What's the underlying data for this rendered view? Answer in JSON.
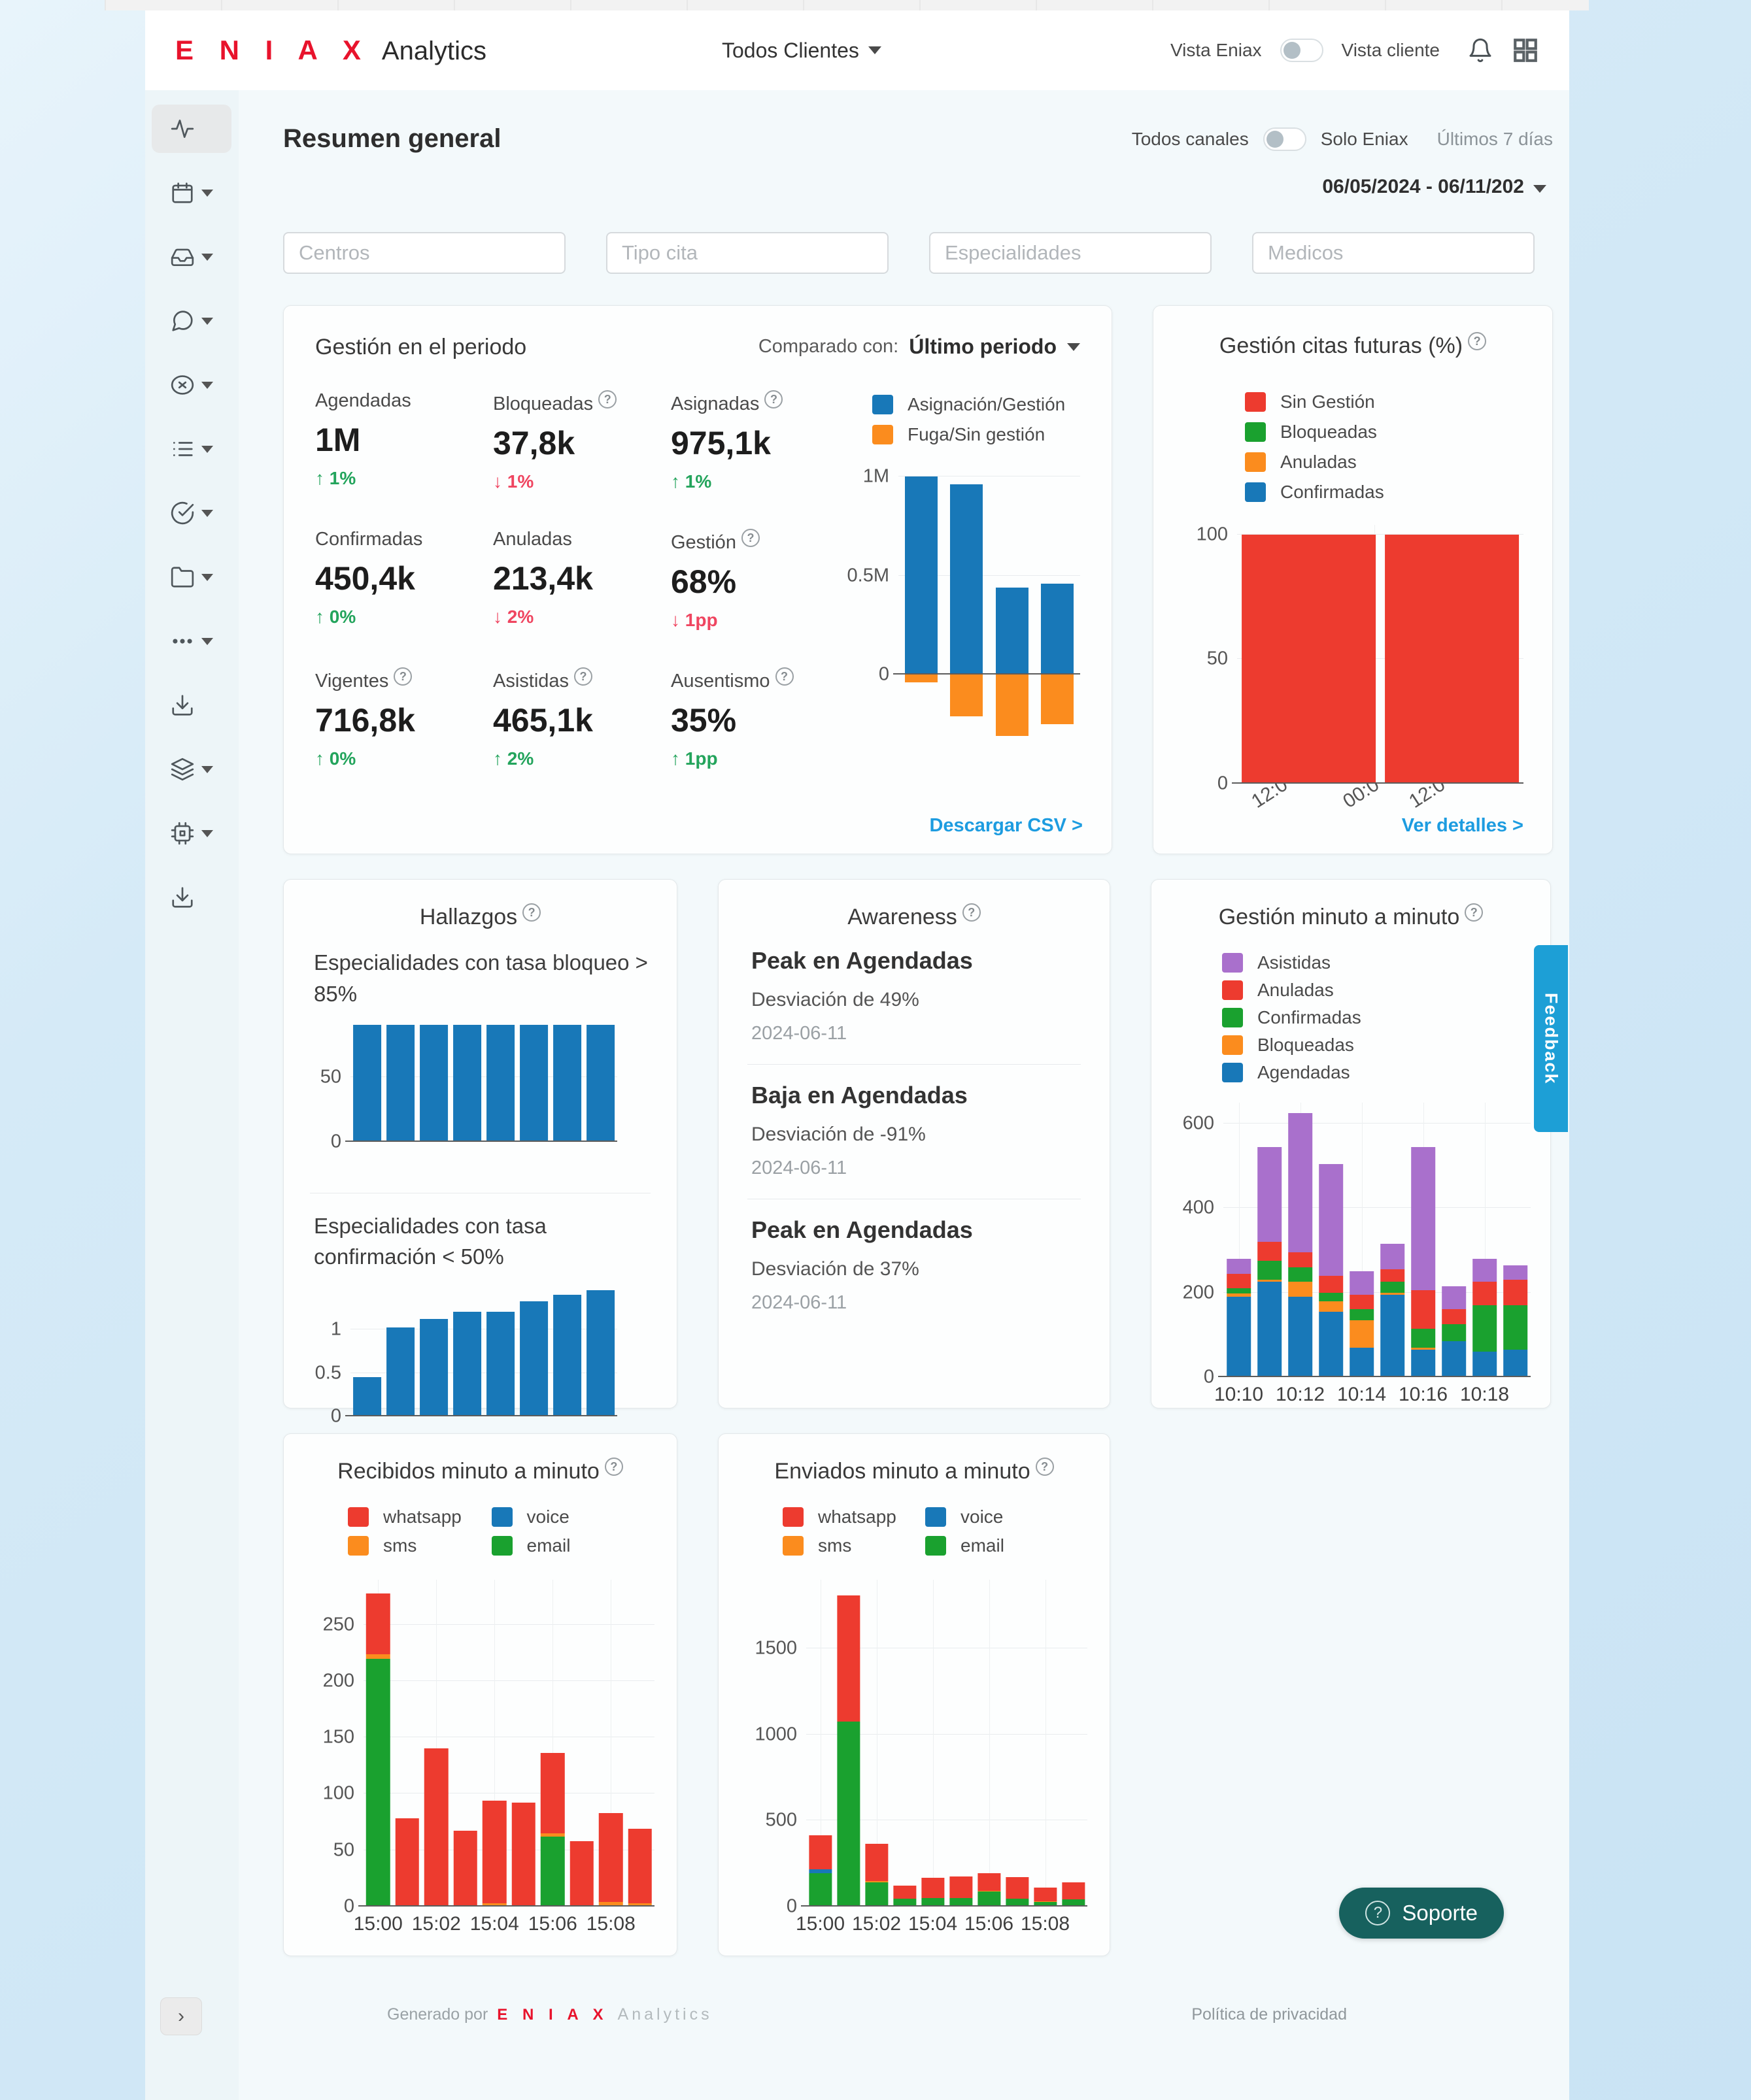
{
  "colors": {
    "brand_red": "#e8132c",
    "link_blue": "#1d9ce0",
    "bar_blue": "#1878b8",
    "bar_orange": "#fb8c1e",
    "bar_red": "#ed3b2f",
    "bar_green": "#1aa12f",
    "bar_purple": "#a970cc",
    "delta_green": "#23a45c",
    "delta_red": "#ef4560",
    "feedback_blue": "#1d9fd6",
    "soporte_teal": "#17615e"
  },
  "header": {
    "brand": "E N I A X",
    "brand_suffix": "Analytics",
    "client_selector": "Todos Clientes",
    "vista_eniax": "Vista Eniax",
    "vista_cliente": "Vista cliente"
  },
  "page": {
    "title": "Resumen general",
    "channels_left": "Todos canales",
    "channels_right": "Solo Eniax",
    "period": "Últimos 7 días",
    "date_range": "06/05/2024 - 06/11/202"
  },
  "filters": {
    "centros": "Centros",
    "tipo_cita": "Tipo cita",
    "especialidades": "Especialidades",
    "medicos": "Medicos"
  },
  "cards": {
    "gestion_periodo": {
      "title": "Gestión en el periodo",
      "compare_label": "Comparado con:",
      "compare_value": "Último periodo",
      "csv_link": "Descargar CSV >",
      "metrics": [
        {
          "label": "Agendadas",
          "info": false,
          "value": "1M",
          "delta": "1%",
          "dir": "up",
          "tone": "green"
        },
        {
          "label": "Bloqueadas",
          "info": true,
          "value": "37,8k",
          "delta": "1%",
          "dir": "down",
          "tone": "red"
        },
        {
          "label": "Asignadas",
          "info": true,
          "value": "975,1k",
          "delta": "1%",
          "dir": "up",
          "tone": "green"
        },
        {
          "label": "Confirmadas",
          "info": false,
          "value": "450,4k",
          "delta": "0%",
          "dir": "up",
          "tone": "green"
        },
        {
          "label": "Anuladas",
          "info": false,
          "value": "213,4k",
          "delta": "2%",
          "dir": "down",
          "tone": "red"
        },
        {
          "label": "Gestión",
          "info": true,
          "value": "68%",
          "delta": "1pp",
          "dir": "down",
          "tone": "red"
        },
        {
          "label": "Vigentes",
          "info": true,
          "value": "716,8k",
          "delta": "0%",
          "dir": "up",
          "tone": "green"
        },
        {
          "label": "Asistidas",
          "info": true,
          "value": "465,1k",
          "delta": "2%",
          "dir": "up",
          "tone": "green"
        },
        {
          "label": "Ausentismo",
          "info": true,
          "value": "35%",
          "delta": "1pp",
          "dir": "up",
          "tone": "green"
        }
      ],
      "legend": [
        {
          "label": "Asignación/Gestión",
          "color": "#1878b8"
        },
        {
          "label": "Fuga/Sin gestión",
          "color": "#fb8c1e"
        }
      ],
      "chart_data": {
        "type": "bar",
        "stacked": true,
        "show_xlabels": false,
        "categories": [
          "",
          "",
          "",
          ""
        ],
        "series": [
          {
            "name": "Asignación/Gestión",
            "color": "#1878b8",
            "values": [
              1.0,
              0.96,
              0.44,
              0.46
            ]
          },
          {
            "name": "Fuga/Sin gestión",
            "color": "#fb8c1e",
            "values": [
              -0.04,
              -0.21,
              -0.31,
              -0.25
            ]
          }
        ],
        "ylabel": "citas (millones)",
        "ylim": [
          -0.36,
          1.06
        ],
        "yticks": [
          [
            1,
            "1M"
          ],
          [
            0.5,
            "0.5M"
          ],
          [
            0,
            "0"
          ]
        ],
        "bar_width": "72%"
      }
    },
    "citas_futuras": {
      "title": "Gestión citas futuras (%)",
      "link": "Ver detalles >",
      "legend": [
        {
          "label": "Sin Gestión",
          "color": "#ed3b2f"
        },
        {
          "label": "Bloqueadas",
          "color": "#1aa12f"
        },
        {
          "label": "Anuladas",
          "color": "#fb8c1e"
        },
        {
          "label": "Confirmadas",
          "color": "#1878b8"
        }
      ],
      "chart_data": {
        "type": "bar",
        "stacked": true,
        "categories": [
          "",
          ""
        ],
        "series": [
          {
            "name": "Sin Gestión",
            "color": "#ed3b2f",
            "values": [
              100,
              100
            ]
          },
          {
            "name": "Bloqueadas",
            "color": "#1aa12f",
            "values": [
              0,
              0
            ]
          },
          {
            "name": "Anuladas",
            "color": "#fb8c1e",
            "values": [
              0,
              0
            ]
          },
          {
            "name": "Confirmadas",
            "color": "#1878b8",
            "values": [
              0,
              0
            ]
          }
        ],
        "ylim": [
          0,
          104
        ],
        "yticks": [
          [
            100,
            "100"
          ],
          [
            50,
            "50"
          ],
          [
            0,
            "0"
          ]
        ],
        "xticks": [
          {
            "label": "12:0",
            "pos": 6
          },
          {
            "label": "00:0",
            "pos": 38
          },
          {
            "label": "12:0",
            "pos": 61
          }
        ],
        "grid_x": [
          48
        ],
        "bar_width": "94%"
      }
    },
    "hallazgos": {
      "title": "Hallazgos",
      "sub1": "Especialidades con tasa bloqueo > 85%",
      "sub2": "Especialidades con tasa confirmación < 50%",
      "chart_data_bloqueo": {
        "type": "bar",
        "show_xlabels": false,
        "categories": [
          "",
          "",
          "",
          "",
          "",
          "",
          "",
          ""
        ],
        "series": [
          {
            "name": "tasa bloqueo",
            "color": "#1878b8",
            "values": [
              90,
              90,
              90,
              90,
              90,
              90,
              90,
              90
            ]
          }
        ],
        "ylim": [
          0,
          92
        ],
        "yticks": [
          [
            50,
            "50"
          ],
          [
            0,
            "0"
          ]
        ],
        "bar_width": "86%"
      },
      "chart_data_confirmacion": {
        "type": "bar",
        "show_xlabels": false,
        "categories": [
          "",
          "",
          "",
          "",
          "",
          "",
          "",
          ""
        ],
        "series": [
          {
            "name": "tasa confirmación",
            "color": "#1878b8",
            "values": [
              0.45,
              1.02,
              1.12,
              1.2,
              1.2,
              1.32,
              1.4,
              1.45
            ]
          }
        ],
        "ylim": [
          0,
          1.5
        ],
        "yticks": [
          [
            1,
            "1"
          ],
          [
            0.5,
            "0.5"
          ],
          [
            0,
            "0"
          ]
        ],
        "bar_width": "86%"
      }
    },
    "awareness": {
      "title": "Awareness",
      "items": [
        {
          "title": "Peak en Agendadas",
          "sub": "Desviación de 49%",
          "date": "2024-06-11"
        },
        {
          "title": "Baja en Agendadas",
          "sub": "Desviación de -91%",
          "date": "2024-06-11"
        },
        {
          "title": "Peak en Agendadas",
          "sub": "Desviación de 37%",
          "date": "2024-06-11"
        }
      ]
    },
    "gestion_minuto": {
      "title": "Gestión minuto a minuto",
      "legend": [
        {
          "label": "Asistidas",
          "color": "#a970cc"
        },
        {
          "label": "Anuladas",
          "color": "#ed3b2f"
        },
        {
          "label": "Confirmadas",
          "color": "#1aa12f"
        },
        {
          "label": "Bloqueadas",
          "color": "#fb8c1e"
        },
        {
          "label": "Agendadas",
          "color": "#1878b8"
        }
      ],
      "chart_data": {
        "type": "bar",
        "stacked": true,
        "label_every": 2,
        "grid_v": true,
        "categories": [
          "10:10",
          "10:11",
          "10:12",
          "10:13",
          "10:14",
          "10:15",
          "10:16",
          "10:17",
          "10:18",
          "10:19"
        ],
        "series": [
          {
            "name": "Agendadas",
            "color": "#1878b8",
            "values": [
              190,
              225,
              190,
              155,
              70,
              195,
              65,
              85,
              60,
              65
            ]
          },
          {
            "name": "Bloqueadas",
            "color": "#fb8c1e",
            "values": [
              8,
              5,
              35,
              25,
              65,
              5,
              5,
              0,
              0,
              0
            ]
          },
          {
            "name": "Confirmadas",
            "color": "#1aa12f",
            "values": [
              12,
              45,
              35,
              20,
              25,
              25,
              45,
              40,
              110,
              105
            ]
          },
          {
            "name": "Anuladas",
            "color": "#ed3b2f",
            "values": [
              35,
              45,
              35,
              40,
              35,
              30,
              90,
              35,
              55,
              60
            ]
          },
          {
            "name": "Asistidas",
            "color": "#a970cc",
            "values": [
              35,
              225,
              330,
              265,
              55,
              60,
              340,
              55,
              55,
              35
            ]
          }
        ],
        "ylim": [
          0,
          650
        ],
        "yticks": [
          [
            600,
            "600"
          ],
          [
            400,
            "400"
          ],
          [
            200,
            "200"
          ],
          [
            0,
            "0"
          ]
        ],
        "bar_width": "80%"
      }
    },
    "recibidos": {
      "title": "Recibidos minuto a minuto",
      "legend": [
        {
          "label": "whatsapp",
          "color": "#ed3b2f"
        },
        {
          "label": "voice",
          "color": "#1878b8"
        },
        {
          "label": "sms",
          "color": "#fb8c1e"
        },
        {
          "label": "email",
          "color": "#1aa12f"
        }
      ],
      "chart_data": {
        "type": "bar",
        "stacked": true,
        "label_every": 2,
        "grid_v": true,
        "categories": [
          "15:00",
          "15:01",
          "15:02",
          "15:03",
          "15:04",
          "15:05",
          "15:06",
          "15:07",
          "15:08",
          "15:09"
        ],
        "series": [
          {
            "name": "email",
            "color": "#1aa12f",
            "values": [
              220,
              0,
              0,
              0,
              0,
              0,
              62,
              0,
              0,
              0
            ]
          },
          {
            "name": "voice",
            "color": "#1878b8",
            "values": [
              0,
              0,
              0,
              0,
              0,
              0,
              0,
              0,
              0,
              0
            ]
          },
          {
            "name": "sms",
            "color": "#fb8c1e",
            "values": [
              4,
              0,
              0,
              0,
              3,
              0,
              3,
              0,
              4,
              3
            ]
          },
          {
            "name": "whatsapp",
            "color": "#ed3b2f",
            "values": [
              54,
              78,
              140,
              67,
              91,
              92,
              71,
              58,
              79,
              66
            ]
          }
        ],
        "ylim": [
          0,
          290
        ],
        "yticks": [
          [
            250,
            "250"
          ],
          [
            200,
            "200"
          ],
          [
            150,
            "150"
          ],
          [
            100,
            "100"
          ],
          [
            50,
            "50"
          ],
          [
            0,
            "0"
          ]
        ],
        "bar_width": "82%"
      }
    },
    "enviados": {
      "title": "Enviados minuto a minuto",
      "legend": [
        {
          "label": "whatsapp",
          "color": "#ed3b2f"
        },
        {
          "label": "voice",
          "color": "#1878b8"
        },
        {
          "label": "sms",
          "color": "#fb8c1e"
        },
        {
          "label": "email",
          "color": "#1aa12f"
        }
      ],
      "chart_data": {
        "type": "bar",
        "stacked": true,
        "label_every": 2,
        "grid_v": true,
        "categories": [
          "15:00",
          "15:01",
          "15:02",
          "15:03",
          "15:04",
          "15:05",
          "15:06",
          "15:07",
          "15:08",
          "15:09"
        ],
        "series": [
          {
            "name": "email",
            "color": "#1aa12f",
            "values": [
              195,
              1075,
              140,
              45,
              50,
              50,
              85,
              45,
              25,
              40
            ]
          },
          {
            "name": "voice",
            "color": "#1878b8",
            "values": [
              20,
              0,
              0,
              0,
              0,
              0,
              0,
              0,
              0,
              0
            ]
          },
          {
            "name": "sms",
            "color": "#fb8c1e",
            "values": [
              0,
              0,
              8,
              0,
              0,
              0,
              5,
              0,
              5,
              0
            ]
          },
          {
            "name": "whatsapp",
            "color": "#ed3b2f",
            "values": [
              200,
              735,
              215,
              75,
              115,
              125,
              105,
              125,
              80,
              100
            ]
          }
        ],
        "ylim": [
          0,
          1900
        ],
        "yticks": [
          [
            1500,
            "1500"
          ],
          [
            1000,
            "1000"
          ],
          [
            500,
            "500"
          ],
          [
            0,
            "0"
          ]
        ],
        "bar_width": "82%"
      }
    }
  },
  "floating": {
    "feedback": "Feedback",
    "soporte": "Soporte"
  },
  "footer": {
    "generated": "Generado por",
    "brand": "E N I A X",
    "brand_suffix": "Analytics",
    "privacy": "Política de privacidad"
  }
}
